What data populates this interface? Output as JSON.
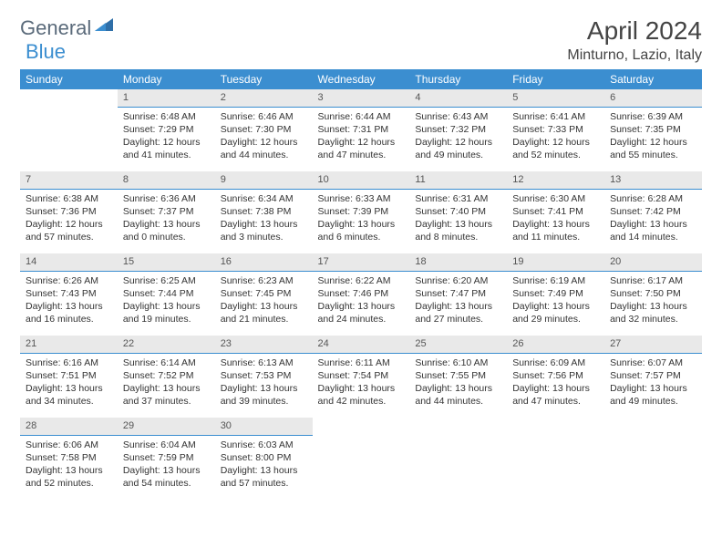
{
  "brand": {
    "part1": "General",
    "part2": "Blue"
  },
  "title": "April 2024",
  "location": "Minturno, Lazio, Italy",
  "colors": {
    "header_bg": "#3b8ed0",
    "header_text": "#ffffff",
    "daynum_bg": "#e9e9e9",
    "daynum_border": "#3b8ed0",
    "body_text": "#333333",
    "logo_gray": "#5a6a7a",
    "logo_blue": "#3b8ed0",
    "page_bg": "#ffffff"
  },
  "weekdays": [
    "Sunday",
    "Monday",
    "Tuesday",
    "Wednesday",
    "Thursday",
    "Friday",
    "Saturday"
  ],
  "weeks": [
    [
      null,
      {
        "n": "1",
        "sr": "Sunrise: 6:48 AM",
        "ss": "Sunset: 7:29 PM",
        "dl": "Daylight: 12 hours and 41 minutes."
      },
      {
        "n": "2",
        "sr": "Sunrise: 6:46 AM",
        "ss": "Sunset: 7:30 PM",
        "dl": "Daylight: 12 hours and 44 minutes."
      },
      {
        "n": "3",
        "sr": "Sunrise: 6:44 AM",
        "ss": "Sunset: 7:31 PM",
        "dl": "Daylight: 12 hours and 47 minutes."
      },
      {
        "n": "4",
        "sr": "Sunrise: 6:43 AM",
        "ss": "Sunset: 7:32 PM",
        "dl": "Daylight: 12 hours and 49 minutes."
      },
      {
        "n": "5",
        "sr": "Sunrise: 6:41 AM",
        "ss": "Sunset: 7:33 PM",
        "dl": "Daylight: 12 hours and 52 minutes."
      },
      {
        "n": "6",
        "sr": "Sunrise: 6:39 AM",
        "ss": "Sunset: 7:35 PM",
        "dl": "Daylight: 12 hours and 55 minutes."
      }
    ],
    [
      {
        "n": "7",
        "sr": "Sunrise: 6:38 AM",
        "ss": "Sunset: 7:36 PM",
        "dl": "Daylight: 12 hours and 57 minutes."
      },
      {
        "n": "8",
        "sr": "Sunrise: 6:36 AM",
        "ss": "Sunset: 7:37 PM",
        "dl": "Daylight: 13 hours and 0 minutes."
      },
      {
        "n": "9",
        "sr": "Sunrise: 6:34 AM",
        "ss": "Sunset: 7:38 PM",
        "dl": "Daylight: 13 hours and 3 minutes."
      },
      {
        "n": "10",
        "sr": "Sunrise: 6:33 AM",
        "ss": "Sunset: 7:39 PM",
        "dl": "Daylight: 13 hours and 6 minutes."
      },
      {
        "n": "11",
        "sr": "Sunrise: 6:31 AM",
        "ss": "Sunset: 7:40 PM",
        "dl": "Daylight: 13 hours and 8 minutes."
      },
      {
        "n": "12",
        "sr": "Sunrise: 6:30 AM",
        "ss": "Sunset: 7:41 PM",
        "dl": "Daylight: 13 hours and 11 minutes."
      },
      {
        "n": "13",
        "sr": "Sunrise: 6:28 AM",
        "ss": "Sunset: 7:42 PM",
        "dl": "Daylight: 13 hours and 14 minutes."
      }
    ],
    [
      {
        "n": "14",
        "sr": "Sunrise: 6:26 AM",
        "ss": "Sunset: 7:43 PM",
        "dl": "Daylight: 13 hours and 16 minutes."
      },
      {
        "n": "15",
        "sr": "Sunrise: 6:25 AM",
        "ss": "Sunset: 7:44 PM",
        "dl": "Daylight: 13 hours and 19 minutes."
      },
      {
        "n": "16",
        "sr": "Sunrise: 6:23 AM",
        "ss": "Sunset: 7:45 PM",
        "dl": "Daylight: 13 hours and 21 minutes."
      },
      {
        "n": "17",
        "sr": "Sunrise: 6:22 AM",
        "ss": "Sunset: 7:46 PM",
        "dl": "Daylight: 13 hours and 24 minutes."
      },
      {
        "n": "18",
        "sr": "Sunrise: 6:20 AM",
        "ss": "Sunset: 7:47 PM",
        "dl": "Daylight: 13 hours and 27 minutes."
      },
      {
        "n": "19",
        "sr": "Sunrise: 6:19 AM",
        "ss": "Sunset: 7:49 PM",
        "dl": "Daylight: 13 hours and 29 minutes."
      },
      {
        "n": "20",
        "sr": "Sunrise: 6:17 AM",
        "ss": "Sunset: 7:50 PM",
        "dl": "Daylight: 13 hours and 32 minutes."
      }
    ],
    [
      {
        "n": "21",
        "sr": "Sunrise: 6:16 AM",
        "ss": "Sunset: 7:51 PM",
        "dl": "Daylight: 13 hours and 34 minutes."
      },
      {
        "n": "22",
        "sr": "Sunrise: 6:14 AM",
        "ss": "Sunset: 7:52 PM",
        "dl": "Daylight: 13 hours and 37 minutes."
      },
      {
        "n": "23",
        "sr": "Sunrise: 6:13 AM",
        "ss": "Sunset: 7:53 PM",
        "dl": "Daylight: 13 hours and 39 minutes."
      },
      {
        "n": "24",
        "sr": "Sunrise: 6:11 AM",
        "ss": "Sunset: 7:54 PM",
        "dl": "Daylight: 13 hours and 42 minutes."
      },
      {
        "n": "25",
        "sr": "Sunrise: 6:10 AM",
        "ss": "Sunset: 7:55 PM",
        "dl": "Daylight: 13 hours and 44 minutes."
      },
      {
        "n": "26",
        "sr": "Sunrise: 6:09 AM",
        "ss": "Sunset: 7:56 PM",
        "dl": "Daylight: 13 hours and 47 minutes."
      },
      {
        "n": "27",
        "sr": "Sunrise: 6:07 AM",
        "ss": "Sunset: 7:57 PM",
        "dl": "Daylight: 13 hours and 49 minutes."
      }
    ],
    [
      {
        "n": "28",
        "sr": "Sunrise: 6:06 AM",
        "ss": "Sunset: 7:58 PM",
        "dl": "Daylight: 13 hours and 52 minutes."
      },
      {
        "n": "29",
        "sr": "Sunrise: 6:04 AM",
        "ss": "Sunset: 7:59 PM",
        "dl": "Daylight: 13 hours and 54 minutes."
      },
      {
        "n": "30",
        "sr": "Sunrise: 6:03 AM",
        "ss": "Sunset: 8:00 PM",
        "dl": "Daylight: 13 hours and 57 minutes."
      },
      null,
      null,
      null,
      null
    ]
  ]
}
